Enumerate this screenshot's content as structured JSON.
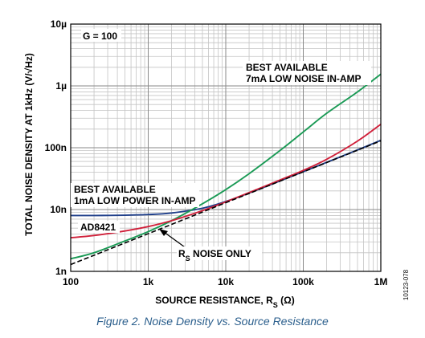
{
  "caption": "Figure 2. Noise Density vs. Source Resistance",
  "side_id": "10123-078",
  "chart_data": {
    "type": "line",
    "xlabel": "SOURCE RESISTANCE, R",
    "xlabel_sub": "S",
    "xlabel_unit": " (Ω)",
    "ylabel": "TOTAL NOISE DENSITY AT 1kHz (V/√Hz)",
    "xscale": "log",
    "yscale": "log",
    "xlim": [
      100,
      1000000
    ],
    "ylim": [
      1e-09,
      1e-05
    ],
    "grid": true,
    "x_ticks": [
      {
        "v": 100,
        "label": "100"
      },
      {
        "v": 1000,
        "label": "1k"
      },
      {
        "v": 10000,
        "label": "10k"
      },
      {
        "v": 100000,
        "label": "100k"
      },
      {
        "v": 1000000,
        "label": "1M"
      }
    ],
    "y_ticks": [
      {
        "v": 1e-09,
        "label": "1n"
      },
      {
        "v": 1e-08,
        "label": "10n"
      },
      {
        "v": 1e-07,
        "label": "100n"
      },
      {
        "v": 1e-06,
        "label": "1µ"
      },
      {
        "v": 1e-05,
        "label": "10µ"
      }
    ],
    "annotations": {
      "gain": "G = 100",
      "best7_line1": "BEST AVAILABLE",
      "best7_line2": "7mA LOW NOISE IN-AMP",
      "best1_line1": "BEST AVAILABLE",
      "best1_line2": "1mA LOW POWER IN-AMP",
      "ad8421": "AD8421",
      "rs_noise": "R",
      "rs_noise_sub": "S",
      "rs_noise_tail": " NOISE ONLY"
    },
    "series": [
      {
        "key": "ad8421",
        "color": "#d0203a",
        "dash": false,
        "x": [
          100,
          200,
          500,
          1000,
          2000,
          5000,
          10000,
          20000,
          50000,
          100000,
          200000,
          500000,
          1000000
        ],
        "y": [
          3.5e-09,
          3.8e-09,
          4.5e-09,
          5.3e-09,
          6.6e-09,
          9.6e-09,
          1.33e-08,
          1.88e-08,
          3e-08,
          4.3e-08,
          6.5e-08,
          1.28e-07,
          2.4e-07
        ]
      },
      {
        "key": "best_1ma",
        "color": "#1f3f8a",
        "dash": false,
        "x": [
          100,
          200,
          500,
          1000,
          2000,
          5000,
          10000,
          20000,
          50000,
          100000,
          200000,
          500000,
          1000000
        ],
        "y": [
          8e-09,
          8e-09,
          8.1e-09,
          8.3e-09,
          8.8e-09,
          1.05e-08,
          1.35e-08,
          1.85e-08,
          2.9e-08,
          4.1e-08,
          5.8e-08,
          9.2e-08,
          1.32e-07
        ]
      },
      {
        "key": "best_7ma",
        "color": "#1a9a55",
        "dash": false,
        "x": [
          100,
          200,
          500,
          1000,
          2000,
          5000,
          10000,
          20000,
          50000,
          100000,
          200000,
          500000,
          1000000
        ],
        "y": [
          1.6e-09,
          2e-09,
          3.1e-09,
          4.4e-09,
          6.6e-09,
          1.24e-08,
          2.1e-08,
          3.8e-08,
          9e-08,
          1.8e-07,
          3.6e-07,
          8e-07,
          1.55e-06
        ]
      },
      {
        "key": "rs_only",
        "color": "#000000",
        "dash": true,
        "x": [
          100,
          200,
          500,
          1000,
          2000,
          5000,
          10000,
          20000,
          50000,
          100000,
          200000,
          500000,
          1000000
        ],
        "y": [
          1.29e-09,
          1.82e-09,
          2.88e-09,
          4.07e-09,
          5.75e-09,
          9.1e-09,
          1.29e-08,
          1.82e-08,
          2.88e-08,
          4.07e-08,
          5.75e-08,
          9.1e-08,
          1.29e-07
        ]
      }
    ]
  }
}
